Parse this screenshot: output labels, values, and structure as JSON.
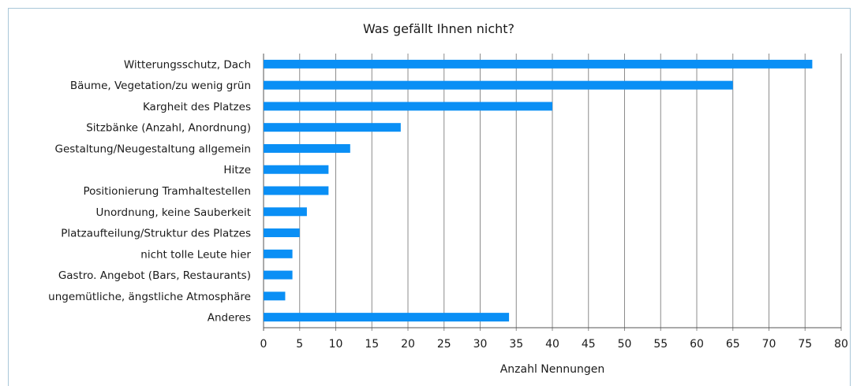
{
  "chart_data": {
    "type": "bar",
    "orientation": "horizontal",
    "title": "Was gefällt Ihnen nicht?",
    "xlabel": "Anzahl Nennungen",
    "ylabel": "",
    "xlim": [
      0,
      80
    ],
    "xticks": [
      0,
      5,
      10,
      15,
      20,
      25,
      30,
      35,
      40,
      45,
      50,
      55,
      60,
      65,
      70,
      75,
      80
    ],
    "grid": true,
    "legend": "none",
    "bar_color": "#0a8ff5",
    "categories": [
      "Witterungsschutz, Dach",
      "Bäume, Vegetation/zu wenig grün",
      "Kargheit des Platzes",
      "Sitzbänke (Anzahl, Anordnung)",
      "Gestaltung/Neugestaltung allgemein",
      "Hitze",
      "Positionierung Tramhaltestellen",
      "Unordnung, keine Sauberkeit",
      "Platzaufteilung/Struktur des Platzes",
      "nicht tolle Leute hier",
      "Gastro. Angebot (Bars, Restaurants)",
      "ungemütliche, ängstliche Atmosphäre",
      "Anderes"
    ],
    "values": [
      76,
      65,
      40,
      19,
      12,
      9,
      9,
      6,
      5,
      4,
      4,
      3,
      34
    ]
  }
}
